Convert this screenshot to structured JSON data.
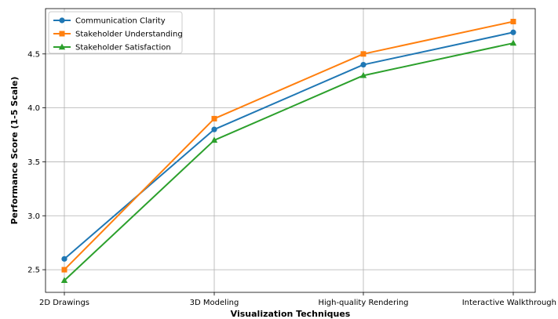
{
  "chart_data": {
    "type": "line",
    "xlabel": "Visualization Techniques",
    "ylabel": "Performance Score (1-5 Scale)",
    "categories": [
      "2D Drawings",
      "3D Modeling",
      "High-quality Rendering",
      "Interactive Walkthrough"
    ],
    "ylim": [
      2.29,
      4.92
    ],
    "yticks": [
      "2.5",
      "3.0",
      "3.5",
      "4.0",
      "4.5"
    ],
    "grid": true,
    "legend_position": "top-left",
    "series": [
      {
        "name": "Communication Clarity",
        "values": [
          2.6,
          3.8,
          4.4,
          4.7
        ],
        "color": "#1f77b4",
        "marker": "circle"
      },
      {
        "name": "Stakeholder Understanding",
        "values": [
          2.5,
          3.9,
          4.5,
          4.8
        ],
        "color": "#ff7f0e",
        "marker": "square"
      },
      {
        "name": "Stakeholder Satisfaction",
        "values": [
          2.4,
          3.7,
          4.3,
          4.6
        ],
        "color": "#2ca02c",
        "marker": "triangle"
      }
    ]
  }
}
